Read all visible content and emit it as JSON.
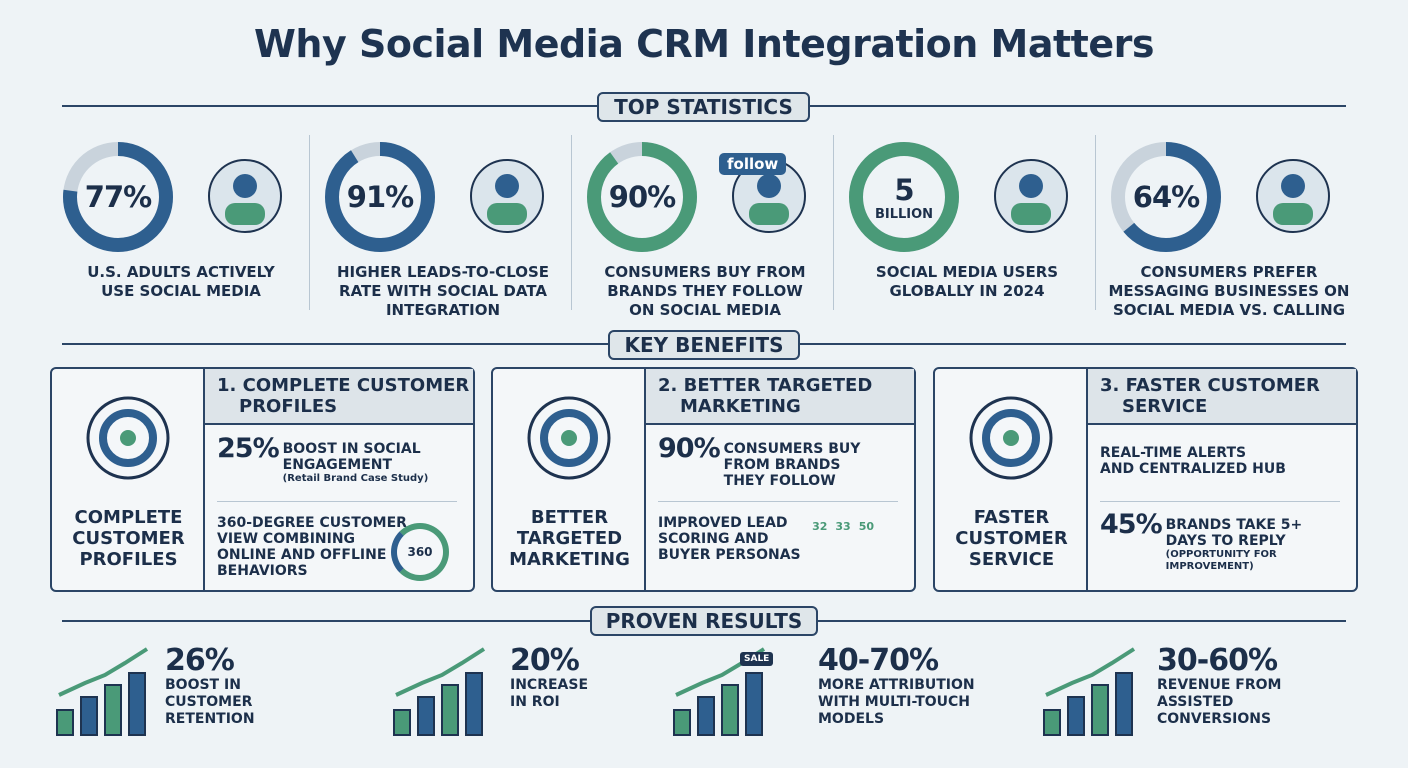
{
  "title": "Why Social Media CRM Integration Matters",
  "colors": {
    "navy": "#1e3350",
    "blue": "#2e5f8f",
    "green": "#4a9a78",
    "track": "#c9d3dc",
    "background": "#eef3f6"
  },
  "sections": {
    "top": "TOP STATISTICS",
    "benefits": "KEY BENEFITS",
    "results": "PROVEN RESULTS"
  },
  "stats": [
    {
      "value": "77%",
      "percent": 77,
      "color": "blue",
      "label": [
        "U.S. ADULTS ACTIVELY",
        "USE SOCIAL MEDIA"
      ],
      "icon": "social-cloud-people-icon"
    },
    {
      "value": "91%",
      "percent": 91,
      "color": "blue",
      "label": [
        "HIGHER LEADS-TO-CLOSE",
        "RATE WITH SOCIAL DATA",
        "INTEGRATION"
      ],
      "icon": "funnel-check-icon"
    },
    {
      "value": "90%",
      "percent": 90,
      "color": "green",
      "label": [
        "CONSUMERS BUY FROM",
        "BRANDS THEY FOLLOW",
        "ON SOCIAL MEDIA"
      ],
      "icon": "follow-cart-icon",
      "follow": "follow"
    },
    {
      "value": "5",
      "sub": "BILLION",
      "percent": 100,
      "color": "green",
      "label": [
        "SOCIAL MEDIA USERS",
        "GLOBALLY IN 2024"
      ],
      "icon": "globe-network-icon"
    },
    {
      "value": "64%",
      "percent": 64,
      "color": "blue",
      "label": [
        "CONSUMERS PREFER",
        "MESSAGING BUSINESSES ON",
        "SOCIAL MEDIA VS. CALLING"
      ],
      "icon": "chat-no-phone-icon"
    }
  ],
  "benefits": [
    {
      "left_title": [
        "COMPLETE",
        "CUSTOMER",
        "PROFILES"
      ],
      "head": [
        "1. COMPLETE CUSTOMER",
        "PROFILES"
      ],
      "row1": {
        "big": "25%",
        "text": [
          "BOOST IN SOCIAL",
          "ENGAGEMENT"
        ],
        "note": "(Retail Brand Case Study)"
      },
      "row2": {
        "text": [
          "360-DEGREE CUSTOMER",
          "VIEW COMBINING",
          "ONLINE AND OFFLINE",
          "BEHAVIORS"
        ],
        "badge": "360"
      }
    },
    {
      "left_title": [
        "BETTER",
        "TARGETED",
        "MARKETING"
      ],
      "head": [
        "2. BETTER TARGETED",
        "MARKETING"
      ],
      "row1": {
        "big": "90%",
        "text": [
          "CONSUMERS BUY",
          "FROM BRANDS",
          "THEY FOLLOW"
        ]
      },
      "row2": {
        "text": [
          "IMPROVED LEAD",
          "SCORING AND",
          "BUYER PERSONAS"
        ],
        "scores": [
          "32",
          "33",
          "50"
        ]
      }
    },
    {
      "left_title": [
        "FASTER",
        "CUSTOMER",
        "SERVICE"
      ],
      "head": [
        "3. FASTER CUSTOMER",
        "SERVICE"
      ],
      "row1": {
        "text": [
          "REAL-TIME ALERTS",
          "AND CENTRALIZED HUB"
        ]
      },
      "row2": {
        "big": "45%",
        "text": [
          "BRANDS TAKE 5+",
          "DAYS TO REPLY"
        ],
        "note": "(OPPORTUNITY FOR IMPROVEMENT)"
      }
    }
  ],
  "results": [
    {
      "big": "26%",
      "text": [
        "BOOST IN",
        "CUSTOMER",
        "RETENTION"
      ]
    },
    {
      "big": "20%",
      "text": [
        "INCREASE",
        "IN ROI"
      ]
    },
    {
      "big": "40-70%",
      "text": [
        "MORE ATTRIBUTION",
        "WITH MULTI-TOUCH",
        "MODELS"
      ],
      "sale": "SALE"
    },
    {
      "big": "30-60%",
      "text": [
        "REVENUE FROM",
        "ASSISTED",
        "CONVERSIONS"
      ]
    }
  ]
}
